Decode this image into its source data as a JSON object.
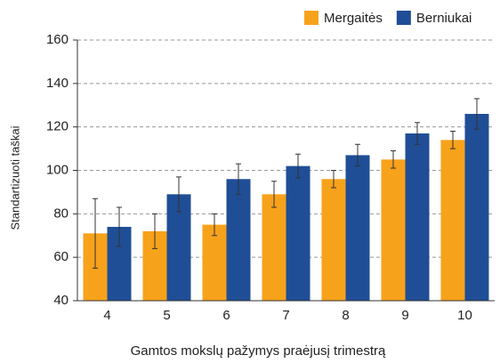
{
  "chart_data": {
    "type": "bar",
    "x_label": "Gamtos mokslų pažymys praėjusį trimestrą",
    "y_label": "Standartizuoti taškai",
    "categories": [
      "4",
      "5",
      "6",
      "7",
      "8",
      "9",
      "10"
    ],
    "series": [
      {
        "name": "Mergaitės",
        "color": "#f7a21b",
        "values": [
          71,
          72,
          75,
          89,
          96,
          105,
          114
        ],
        "errors": [
          16,
          8,
          5,
          6,
          4,
          4,
          4
        ]
      },
      {
        "name": "Berniukai",
        "color": "#1f4e96",
        "values": [
          74,
          89,
          96,
          102,
          107,
          117,
          126
        ],
        "errors": [
          9,
          8,
          7,
          5.5,
          5,
          5,
          7
        ]
      }
    ],
    "ylim": [
      40,
      160
    ],
    "yticks": [
      40,
      60,
      80,
      100,
      120,
      140,
      160
    ],
    "grid": true,
    "legend": "top-right"
  }
}
